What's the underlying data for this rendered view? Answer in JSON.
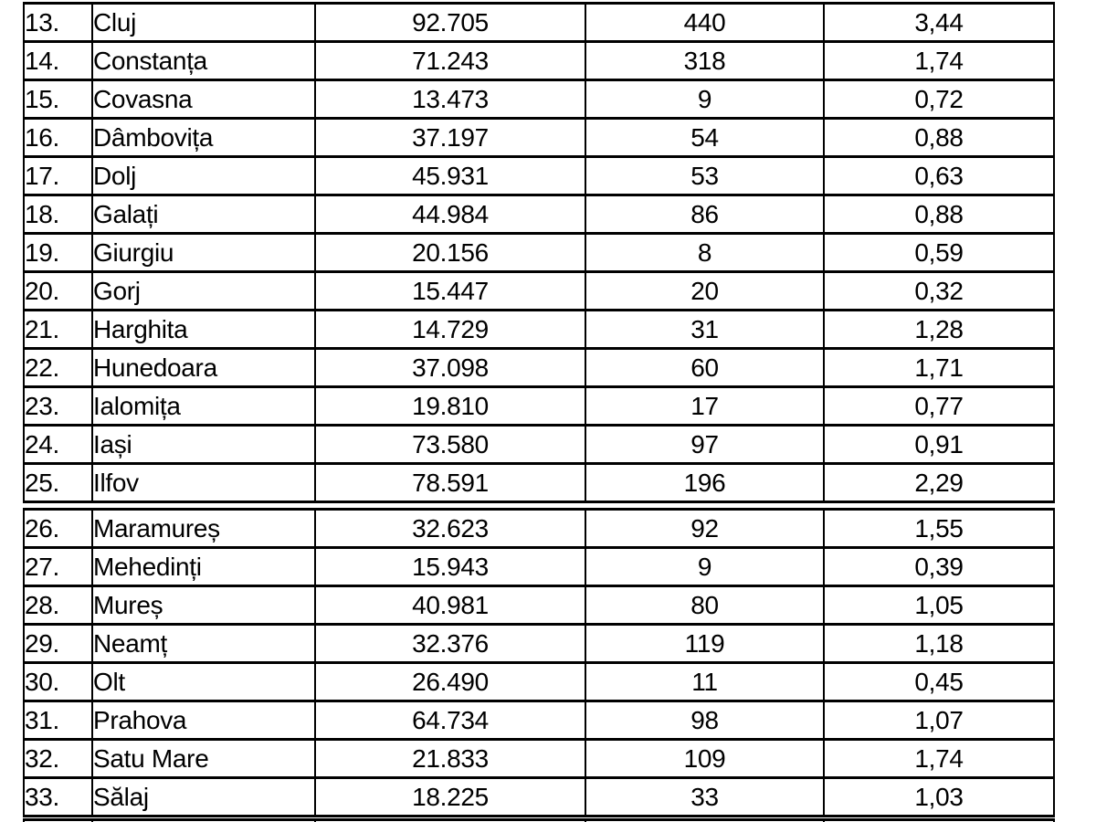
{
  "page": {
    "background_color": "#ffffff",
    "text_color": "#000000",
    "border_color": "#000000"
  },
  "table": {
    "sections": [
      {
        "rows": [
          {
            "num": "13.",
            "name": "Cluj",
            "v1": "92.705",
            "v2": "440",
            "v3": "3,44"
          },
          {
            "num": "14.",
            "name": "Constanța",
            "v1": "71.243",
            "v2": "318",
            "v3": "1,74"
          },
          {
            "num": "15.",
            "name": "Covasna",
            "v1": "13.473",
            "v2": "9",
            "v3": "0,72"
          },
          {
            "num": "16.",
            "name": "Dâmbovița",
            "v1": "37.197",
            "v2": "54",
            "v3": "0,88"
          },
          {
            "num": "17.",
            "name": "Dolj",
            "v1": "45.931",
            "v2": "53",
            "v3": "0,63"
          },
          {
            "num": "18.",
            "name": "Galați",
            "v1": "44.984",
            "v2": "86",
            "v3": "0,88"
          },
          {
            "num": "19.",
            "name": "Giurgiu",
            "v1": "20.156",
            "v2": "8",
            "v3": "0,59"
          },
          {
            "num": "20.",
            "name": "Gorj",
            "v1": "15.447",
            "v2": "20",
            "v3": "0,32"
          },
          {
            "num": "21.",
            "name": "Harghita",
            "v1": "14.729",
            "v2": "31",
            "v3": "1,28"
          },
          {
            "num": "22.",
            "name": "Hunedoara",
            "v1": "37.098",
            "v2": "60",
            "v3": "1,71"
          },
          {
            "num": "23.",
            "name": "Ialomița",
            "v1": "19.810",
            "v2": "17",
            "v3": "0,77"
          },
          {
            "num": "24.",
            "name": "Iași",
            "v1": "73.580",
            "v2": "97",
            "v3": "0,91"
          },
          {
            "num": "25.",
            "name": "Ilfov",
            "v1": "78.591",
            "v2": "196",
            "v3": "2,29"
          }
        ]
      },
      {
        "rows": [
          {
            "num": "26.",
            "name": "Maramureș",
            "v1": "32.623",
            "v2": "92",
            "v3": "1,55"
          },
          {
            "num": "27.",
            "name": "Mehedinți",
            "v1": "15.943",
            "v2": "9",
            "v3": "0,39"
          },
          {
            "num": "28.",
            "name": "Mureș",
            "v1": "40.981",
            "v2": "80",
            "v3": "1,05"
          },
          {
            "num": "29.",
            "name": "Neamț",
            "v1": "32.376",
            "v2": "119",
            "v3": "1,18"
          },
          {
            "num": "30.",
            "name": "Olt",
            "v1": "26.490",
            "v2": "11",
            "v3": "0,45"
          },
          {
            "num": "31.",
            "name": "Prahova",
            "v1": "64.734",
            "v2": "98",
            "v3": "1,07"
          },
          {
            "num": "32.",
            "name": "Satu Mare",
            "v1": "21.833",
            "v2": "109",
            "v3": "1,74"
          },
          {
            "num": "33.",
            "name": "Sălaj",
            "v1": "18.225",
            "v2": "33",
            "v3": "1,03"
          }
        ]
      }
    ]
  }
}
